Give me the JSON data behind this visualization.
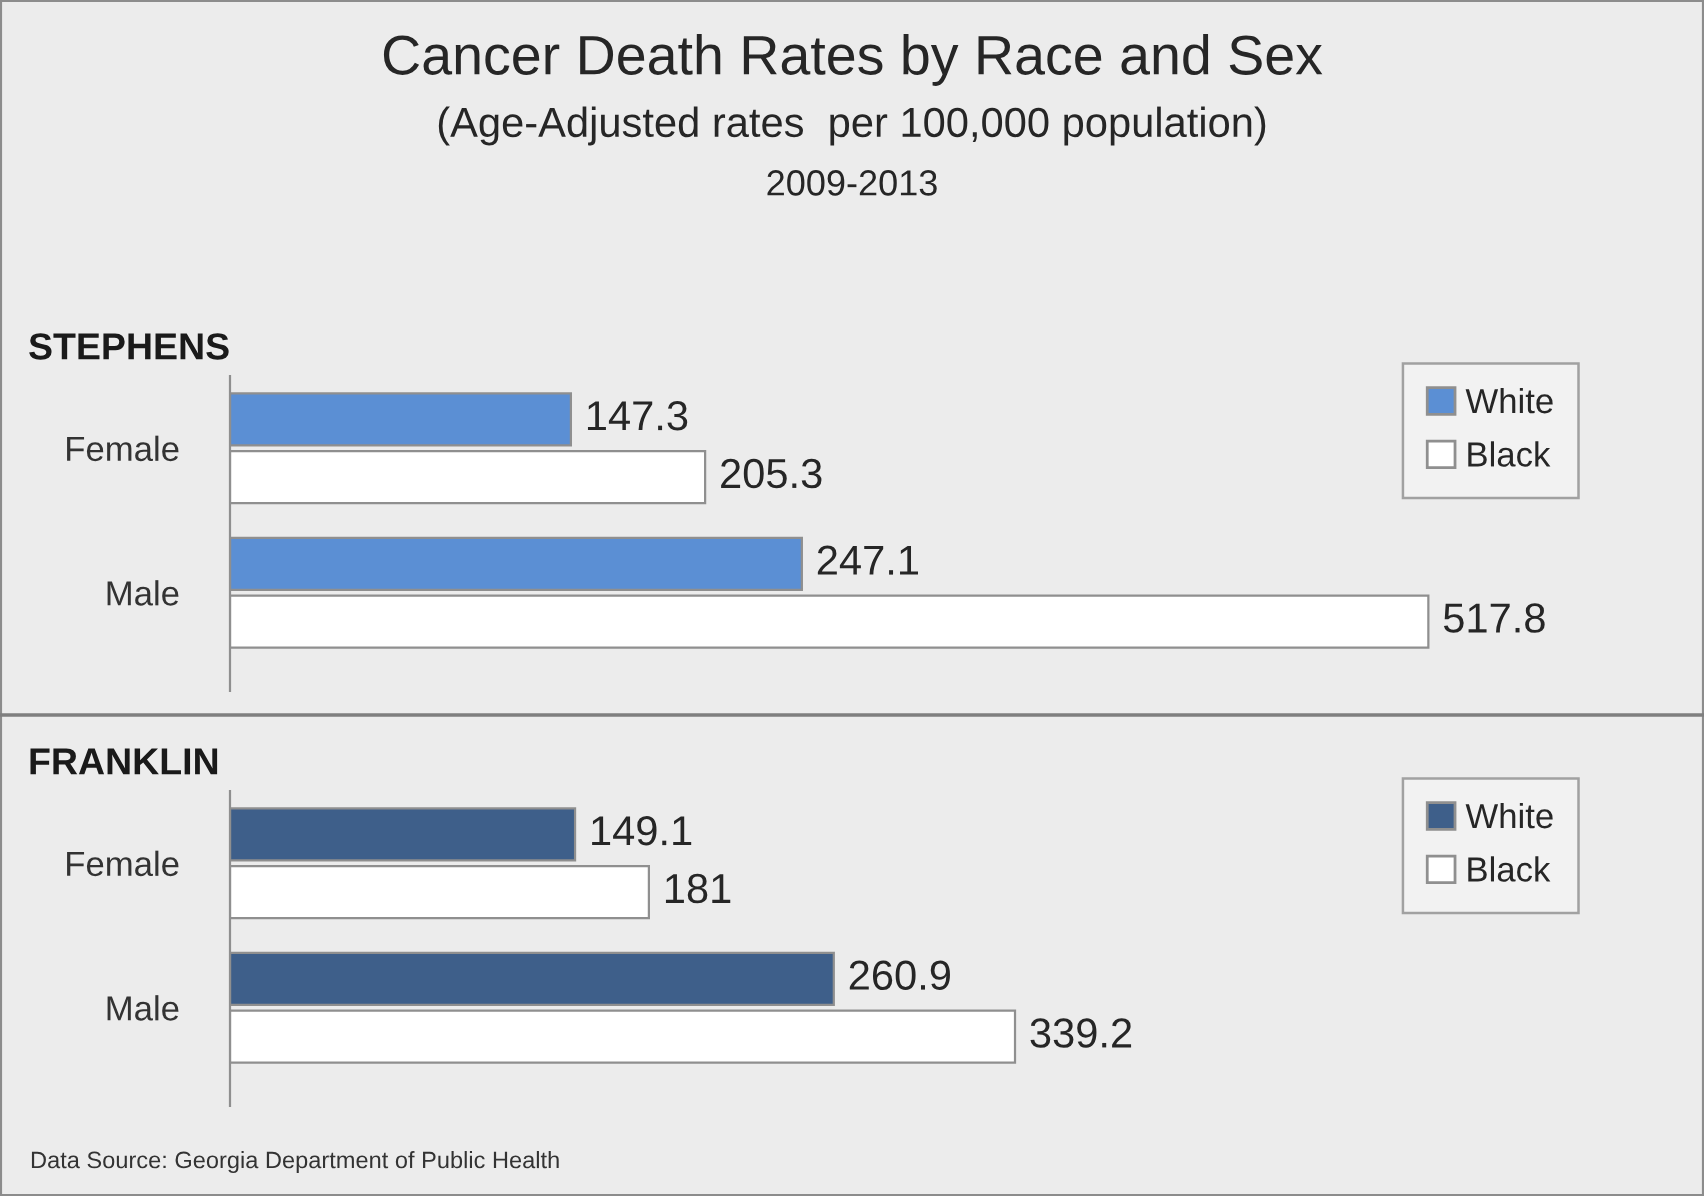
{
  "chart_data": [
    {
      "type": "other",
      "title": "Cancer Death Rates by Race and Sex",
      "subtitle": "(Age-Adjusted rates  per 100,000 population)",
      "annotations": [
        "2009-2013"
      ]
    },
    {
      "type": "bar",
      "orientation": "horizontal",
      "title": "STEPHENS",
      "categories": [
        "Female",
        "Male"
      ],
      "series": [
        {
          "name": "White",
          "color": "#5b8fd4",
          "values": [
            147.3,
            247.1
          ]
        },
        {
          "name": "Black",
          "color": "#ffffff",
          "values": [
            205.3,
            517.8
          ]
        }
      ],
      "data_labels": true,
      "legend": "top right"
    },
    {
      "type": "bar",
      "orientation": "horizontal",
      "title": "FRANKLIN",
      "categories": [
        "Female",
        "Male"
      ],
      "series": [
        {
          "name": "White",
          "color": "#3e5f8a",
          "values": [
            149.1,
            260.9
          ]
        },
        {
          "name": "Black",
          "color": "#ffffff",
          "values": [
            181,
            339.2
          ]
        }
      ],
      "data_labels": true,
      "legend": "top right",
      "annotations": [
        "Data Source: Georgia Department of Public Health"
      ]
    }
  ]
}
